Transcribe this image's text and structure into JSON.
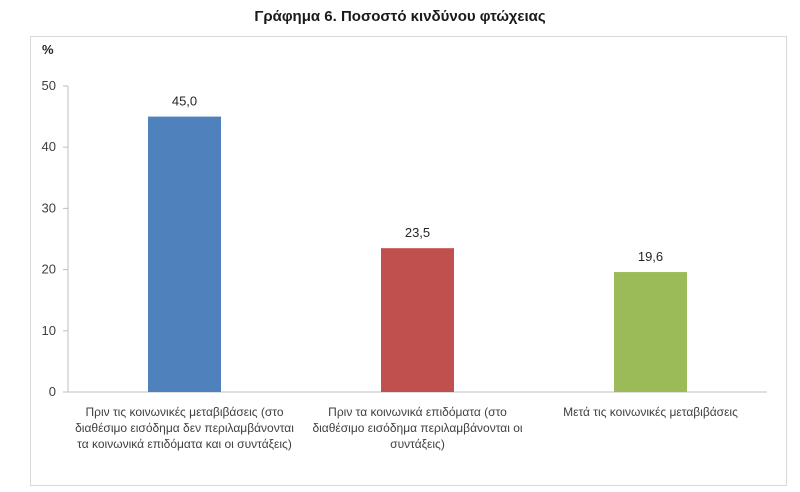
{
  "chart_data": {
    "type": "bar",
    "title": "Γράφημα 6. Ποσοστό κινδύνου φτώχειας",
    "ylabel": "%",
    "xlabel": "",
    "ylim": [
      0,
      50
    ],
    "yticks": [
      "0",
      "10",
      "20",
      "30",
      "40",
      "50"
    ],
    "grid": false,
    "categories": [
      "Πριν τις κοινωνικές μεταβιβάσεις (στο διαθέσιμο εισόδημα δεν περιλαμβάνονται τα κοινωνικά επιδόματα και οι συντάξεις)",
      "Πριν τα κοινωνικά επιδόματα (στο διαθέσιμο εισόδημα περιλαμβάνονται οι συντάξεις)",
      "Μετά τις κοινωνικές μεταβιβάσεις"
    ],
    "values": [
      45.0,
      23.5,
      19.6
    ],
    "data_labels": [
      "45,0",
      "23,5",
      "19,6"
    ],
    "colors": [
      "#4f81bd",
      "#c0504d",
      "#9bbb59"
    ]
  }
}
